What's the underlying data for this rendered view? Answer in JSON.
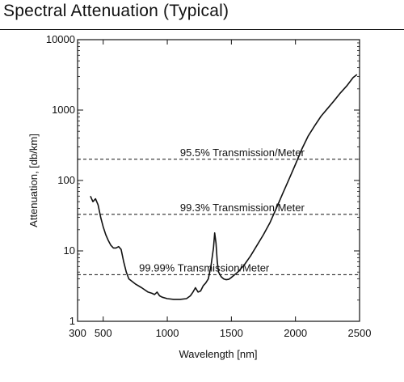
{
  "page": {
    "title": "Spectral Attenuation (Typical)"
  },
  "chart_data": {
    "type": "line",
    "title": "Spectral Attenuation (Typical)",
    "xlabel": "Wavelength [nm]",
    "ylabel": "Attenuation, [db/km]",
    "xlim": [
      300,
      2500
    ],
    "ylim": [
      1,
      10000
    ],
    "y_scale": "log",
    "grid": false,
    "x_ticks": [
      {
        "value": 300,
        "label": "300"
      },
      {
        "value": 500,
        "label": "500"
      },
      {
        "value": 1000,
        "label": "1000"
      },
      {
        "value": 1500,
        "label": "1500"
      },
      {
        "value": 2000,
        "label": "2000"
      },
      {
        "value": 2500,
        "label": "2500"
      }
    ],
    "y_ticks": [
      {
        "value": 1,
        "label": "1"
      },
      {
        "value": 10,
        "label": "10"
      },
      {
        "value": 100,
        "label": "100"
      },
      {
        "value": 1000,
        "label": "1000"
      },
      {
        "value": 10000,
        "label": "10000"
      }
    ],
    "reference_lines": [
      {
        "value": 200,
        "label": "95.5% Transmission/Meter",
        "label_x": 1100
      },
      {
        "value": 33,
        "label": "99.3% Transmission/Meter",
        "label_x": 1100
      },
      {
        "value": 4.6,
        "label": "99.99% Transmission/Meter",
        "label_x": 780
      }
    ],
    "series": [
      {
        "x": [
          400,
          420,
          440,
          460,
          480,
          500,
          520,
          540,
          560,
          580,
          600,
          620,
          640,
          660,
          680,
          700,
          750,
          800,
          850,
          880,
          900,
          920,
          940,
          960,
          1000,
          1050,
          1100,
          1150,
          1180,
          1200,
          1220,
          1240,
          1260,
          1280,
          1300,
          1320,
          1340,
          1360,
          1370,
          1380,
          1390,
          1400,
          1420,
          1440,
          1460,
          1480,
          1500,
          1550,
          1600,
          1650,
          1700,
          1750,
          1800,
          1850,
          1900,
          1950,
          2000,
          2050,
          2100,
          2150,
          2200,
          2250,
          2300,
          2350,
          2400,
          2450,
          2480
        ],
        "y": [
          60,
          50,
          55,
          45,
          30,
          22,
          17,
          14,
          12,
          11,
          11,
          11.5,
          10.5,
          7,
          5,
          4,
          3.4,
          3,
          2.6,
          2.5,
          2.4,
          2.6,
          2.3,
          2.2,
          2.1,
          2.05,
          2.05,
          2.1,
          2.3,
          2.6,
          3,
          2.6,
          2.7,
          3.2,
          3.5,
          4,
          6,
          11,
          18,
          13,
          7,
          5,
          4.3,
          4,
          3.9,
          3.95,
          4.2,
          5,
          6.3,
          8.5,
          12,
          17,
          25,
          40,
          65,
          105,
          170,
          280,
          430,
          600,
          820,
          1050,
          1350,
          1750,
          2200,
          2900,
          3200
        ]
      }
    ]
  }
}
